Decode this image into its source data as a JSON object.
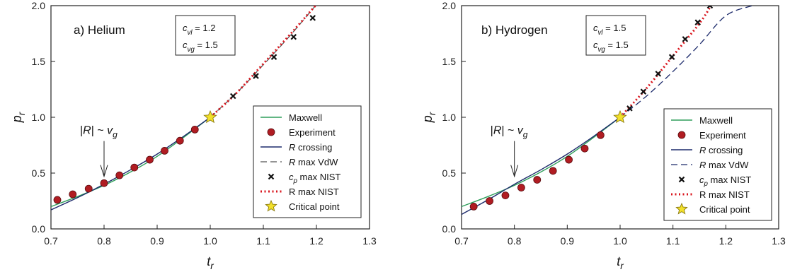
{
  "chart_data": [
    {
      "type": "line",
      "panel_title": "a) Helium",
      "xlabel": "t_r",
      "ylabel": "p_r",
      "xlim": [
        0.7,
        1.3
      ],
      "ylim": [
        0.0,
        2.0
      ],
      "xticks": [
        "0.7",
        "0.8",
        "0.9",
        "1.0",
        "1.1",
        "1.2",
        "1.3"
      ],
      "yticks": [
        "0.0",
        "0.5",
        "1.0",
        "1.5",
        "2.0"
      ],
      "params": [
        "c_vl = 1.2",
        "c_vg = 1.5"
      ],
      "annotation": "|R| ~ v_g",
      "annotation_x": 0.8,
      "annotation_y": 0.42,
      "legend": [
        "Maxwell",
        "Experiment",
        "R crossing",
        "R max VdW",
        "c_p max NIST",
        "R max NIST",
        "Critical point"
      ],
      "series": [
        {
          "name": "Maxwell",
          "style": "solid",
          "color": "#2e9e5a",
          "x": [
            0.7,
            0.75,
            0.8,
            0.85,
            0.9,
            0.95,
            1.0
          ],
          "y": [
            0.2,
            0.29,
            0.39,
            0.51,
            0.65,
            0.82,
            1.0
          ]
        },
        {
          "name": "Experiment",
          "style": "marker-circle",
          "color": "#b01c22",
          "x": [
            0.712,
            0.741,
            0.771,
            0.8,
            0.829,
            0.857,
            0.886,
            0.914,
            0.943,
            0.971
          ],
          "y": [
            0.26,
            0.31,
            0.36,
            0.41,
            0.48,
            0.55,
            0.62,
            0.7,
            0.79,
            0.89
          ]
        },
        {
          "name": "R crossing",
          "style": "solid",
          "color": "#1c2a6b",
          "x": [
            0.7,
            0.75,
            0.8,
            0.85,
            0.9,
            0.95,
            1.0
          ],
          "y": [
            0.17,
            0.28,
            0.4,
            0.53,
            0.67,
            0.83,
            1.0
          ]
        },
        {
          "name": "R max VdW",
          "style": "dashed",
          "color": "#555555",
          "x": [
            1.0,
            1.05,
            1.1,
            1.15,
            1.2
          ],
          "y": [
            1.0,
            1.22,
            1.47,
            1.73,
            2.01
          ]
        },
        {
          "name": "c_p max NIST",
          "style": "marker-x",
          "color": "#111111",
          "x": [
            1.043,
            1.086,
            1.12,
            1.157,
            1.193
          ],
          "y": [
            1.19,
            1.37,
            1.54,
            1.72,
            1.89
          ]
        },
        {
          "name": "R max NIST",
          "style": "dotted",
          "color": "#d9141c",
          "x": [
            1.0,
            1.05,
            1.1,
            1.15,
            1.2
          ],
          "y": [
            1.0,
            1.22,
            1.48,
            1.74,
            2.01
          ]
        },
        {
          "name": "Critical point",
          "style": "marker-star",
          "color": "#f2e02a",
          "x": [
            1.0
          ],
          "y": [
            1.0
          ]
        }
      ]
    },
    {
      "type": "line",
      "panel_title": "b) Hydrogen",
      "xlabel": "t_r",
      "ylabel": "p_r",
      "xlim": [
        0.7,
        1.3
      ],
      "ylim": [
        0.0,
        2.0
      ],
      "xticks": [
        "0.7",
        "0.8",
        "0.9",
        "1.0",
        "1.1",
        "1.2",
        "1.3"
      ],
      "yticks": [
        "0.0",
        "0.5",
        "1.0",
        "1.5",
        "2.0"
      ],
      "params": [
        "c_vl = 1.5",
        "c_vg = 1.5"
      ],
      "annotation": "|R| ~ v_g",
      "annotation_x": 0.8,
      "annotation_y": 0.42,
      "legend": [
        "Maxwell",
        "Experiment",
        "R crossing",
        "R max VdW",
        "c_p max NIST",
        "R max NIST",
        "Critical point"
      ],
      "series": [
        {
          "name": "Maxwell",
          "style": "solid",
          "color": "#2e9e5a",
          "x": [
            0.7,
            0.75,
            0.8,
            0.85,
            0.9,
            0.95,
            1.0
          ],
          "y": [
            0.2,
            0.29,
            0.39,
            0.51,
            0.65,
            0.82,
            1.0
          ]
        },
        {
          "name": "Experiment",
          "style": "marker-circle",
          "color": "#b01c22",
          "x": [
            0.723,
            0.753,
            0.783,
            0.813,
            0.843,
            0.873,
            0.903,
            0.933,
            0.963
          ],
          "y": [
            0.2,
            0.25,
            0.3,
            0.37,
            0.44,
            0.52,
            0.62,
            0.72,
            0.84
          ]
        },
        {
          "name": "R crossing",
          "style": "solid",
          "color": "#1c2a6b",
          "x": [
            0.7,
            0.75,
            0.8,
            0.85,
            0.9,
            0.95,
            1.0
          ],
          "y": [
            0.13,
            0.26,
            0.4,
            0.53,
            0.67,
            0.83,
            1.0
          ]
        },
        {
          "name": "R max VdW",
          "style": "dashed",
          "color": "#1c2a6b",
          "x": [
            1.0,
            1.05,
            1.1,
            1.15,
            1.2,
            1.25
          ],
          "y": [
            1.0,
            1.19,
            1.41,
            1.65,
            1.91,
            2.0
          ]
        },
        {
          "name": "c_p max NIST",
          "style": "marker-x",
          "color": "#111111",
          "x": [
            1.018,
            1.044,
            1.072,
            1.098,
            1.123,
            1.147,
            1.17
          ],
          "y": [
            1.08,
            1.23,
            1.39,
            1.54,
            1.7,
            1.85,
            2.0
          ]
        },
        {
          "name": "R max NIST",
          "style": "dotted",
          "color": "#d9141c",
          "x": [
            1.0,
            1.05,
            1.1,
            1.15,
            1.172
          ],
          "y": [
            1.0,
            1.26,
            1.55,
            1.84,
            2.0
          ]
        },
        {
          "name": "Critical point",
          "style": "marker-star",
          "color": "#f2e02a",
          "x": [
            1.0
          ],
          "y": [
            1.0
          ]
        }
      ]
    }
  ]
}
